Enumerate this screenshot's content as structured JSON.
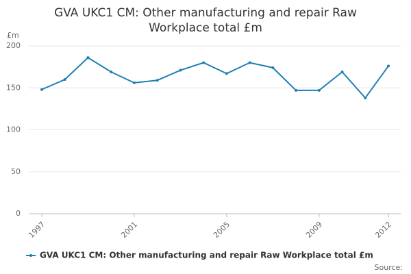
{
  "chart_data": {
    "type": "line",
    "title": "GVA UKC1 CM: Other manufacturing and repair Raw Workplace total £m",
    "y_label": "£m",
    "source": "Source:",
    "x": [
      1997,
      1998,
      1999,
      2000,
      2001,
      2002,
      2003,
      2004,
      2005,
      2006,
      2007,
      2008,
      2009,
      2010,
      2011,
      2012
    ],
    "series": [
      {
        "name": "GVA UKC1 CM: Other manufacturing and repair Raw Workplace total £m",
        "color": "#1f7fb4",
        "values": [
          148,
          160,
          186,
          169,
          156,
          159,
          171,
          180,
          167,
          180,
          174,
          147,
          147,
          169,
          138,
          176
        ]
      }
    ],
    "xlim": [
      1997,
      2012
    ],
    "xticks": [
      1997,
      2001,
      2005,
      2009,
      2012
    ],
    "ylim": [
      0,
      200
    ],
    "yticks": [
      0,
      50,
      100,
      150,
      200
    ],
    "grid": true
  }
}
